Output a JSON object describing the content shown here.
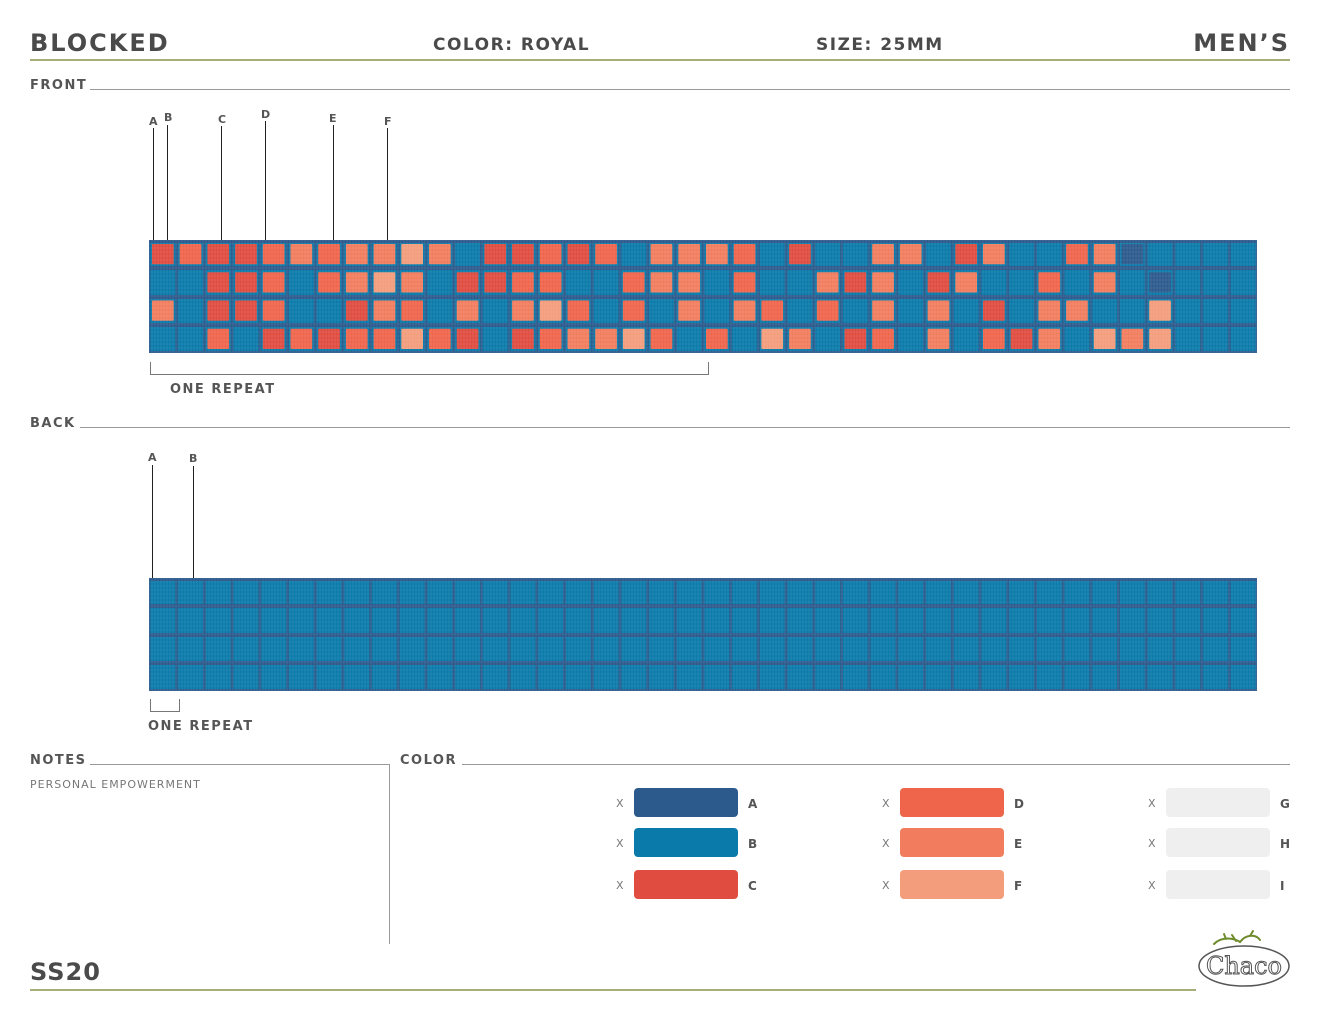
{
  "header": {
    "title": "BLOCKED",
    "color": "COLOR: ROYAL",
    "size": "SIZE: 25MM",
    "gender": "MEN’S"
  },
  "front": {
    "label": "FRONT",
    "callouts": [
      "A",
      "B",
      "C",
      "D",
      "E",
      "F"
    ],
    "repeat_label": "ONE REPEAT"
  },
  "back": {
    "label": "BACK",
    "callouts": [
      "A",
      "B"
    ],
    "repeat_label": "ONE REPEAT"
  },
  "notes": {
    "label": "NOTES",
    "text": "PERSONAL EMPOWERMENT"
  },
  "color_section": {
    "label": "COLOR",
    "swatches": [
      {
        "letter": "A",
        "mark": "X",
        "hex": "#2c5a8c"
      },
      {
        "letter": "B",
        "mark": "X",
        "hex": "#0a7aaa"
      },
      {
        "letter": "C",
        "mark": "X",
        "hex": "#e04c40"
      },
      {
        "letter": "D",
        "mark": "X",
        "hex": "#ef654c"
      },
      {
        "letter": "E",
        "mark": "X",
        "hex": "#f17d5e"
      },
      {
        "letter": "F",
        "mark": "X",
        "hex": "#f49d7c"
      },
      {
        "letter": "G",
        "mark": "X",
        "hex": "#efefef"
      },
      {
        "letter": "H",
        "mark": "X",
        "hex": "#efefef"
      },
      {
        "letter": "I",
        "mark": "X",
        "hex": "#efefef"
      }
    ]
  },
  "footer": {
    "season": "SS20",
    "logo_text": "Chaco"
  },
  "pattern": {
    "rows": [
      "CDCCDEDEEFEBCCDCD.EEEDBCB.EEBCEB.DEAB",
      "BBCCDBDEFEBCCDDB.DEEBDB.ECEBCEB.DBEBA",
      "EBCCDBBCEDBEBEFDBDBEBEDBDBEBEBCBEEBBF",
      "BBDBCDCDDFDCBCDEEFDBDBFEBCDBEBDCEBFEF"
    ]
  }
}
